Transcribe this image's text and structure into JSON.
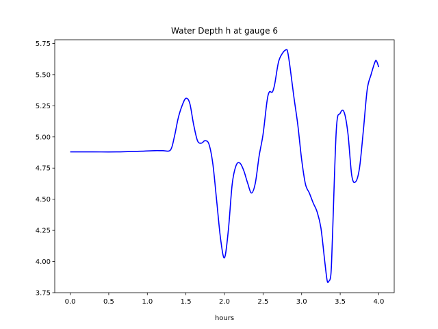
{
  "chart_data": {
    "type": "line",
    "title": "Water Depth h at gauge 6",
    "xlabel": "hours",
    "ylabel": "",
    "xlim": [
      -0.2,
      4.2
    ],
    "ylim": [
      3.75,
      5.78
    ],
    "xticks": [
      0.0,
      0.5,
      1.0,
      1.5,
      2.0,
      2.5,
      3.0,
      3.5,
      4.0
    ],
    "xtick_labels": [
      "0.0",
      "0.5",
      "1.0",
      "1.5",
      "2.0",
      "2.5",
      "3.0",
      "3.5",
      "4.0"
    ],
    "yticks": [
      3.75,
      4.0,
      4.25,
      4.5,
      4.75,
      5.0,
      5.25,
      5.5,
      5.75
    ],
    "ytick_labels": [
      "3.75",
      "4.00",
      "4.25",
      "4.50",
      "4.75",
      "5.00",
      "5.25",
      "5.50",
      "5.75"
    ],
    "grid": false,
    "legend": "none",
    "series": [
      {
        "color": "#0000ff",
        "x": [
          0.0,
          0.3,
          0.6,
          0.9,
          1.1,
          1.2,
          1.3,
          1.35,
          1.4,
          1.45,
          1.5,
          1.55,
          1.6,
          1.65,
          1.7,
          1.75,
          1.8,
          1.85,
          1.9,
          1.95,
          2.0,
          2.05,
          2.1,
          2.15,
          2.2,
          2.25,
          2.3,
          2.35,
          2.4,
          2.45,
          2.5,
          2.55,
          2.58,
          2.62,
          2.65,
          2.7,
          2.75,
          2.8,
          2.82,
          2.85,
          2.9,
          2.95,
          3.0,
          3.05,
          3.1,
          3.15,
          3.2,
          3.25,
          3.3,
          3.33,
          3.35,
          3.38,
          3.4,
          3.45,
          3.5,
          3.55,
          3.6,
          3.65,
          3.7,
          3.75,
          3.8,
          3.85,
          3.9,
          3.95,
          3.97,
          4.0
        ],
        "y": [
          4.88,
          4.88,
          4.88,
          4.885,
          4.89,
          4.89,
          4.895,
          5.0,
          5.15,
          5.25,
          5.31,
          5.27,
          5.1,
          4.97,
          4.95,
          4.97,
          4.94,
          4.78,
          4.48,
          4.18,
          4.03,
          4.25,
          4.62,
          4.77,
          4.79,
          4.73,
          4.63,
          4.55,
          4.63,
          4.85,
          5.02,
          5.28,
          5.36,
          5.36,
          5.42,
          5.6,
          5.67,
          5.7,
          5.68,
          5.56,
          5.32,
          5.1,
          4.82,
          4.62,
          4.55,
          4.47,
          4.4,
          4.27,
          4.0,
          3.85,
          3.84,
          3.9,
          4.2,
          5.06,
          5.19,
          5.2,
          5.03,
          4.69,
          4.64,
          4.75,
          5.05,
          5.38,
          5.5,
          5.6,
          5.61,
          5.56
        ]
      }
    ]
  }
}
